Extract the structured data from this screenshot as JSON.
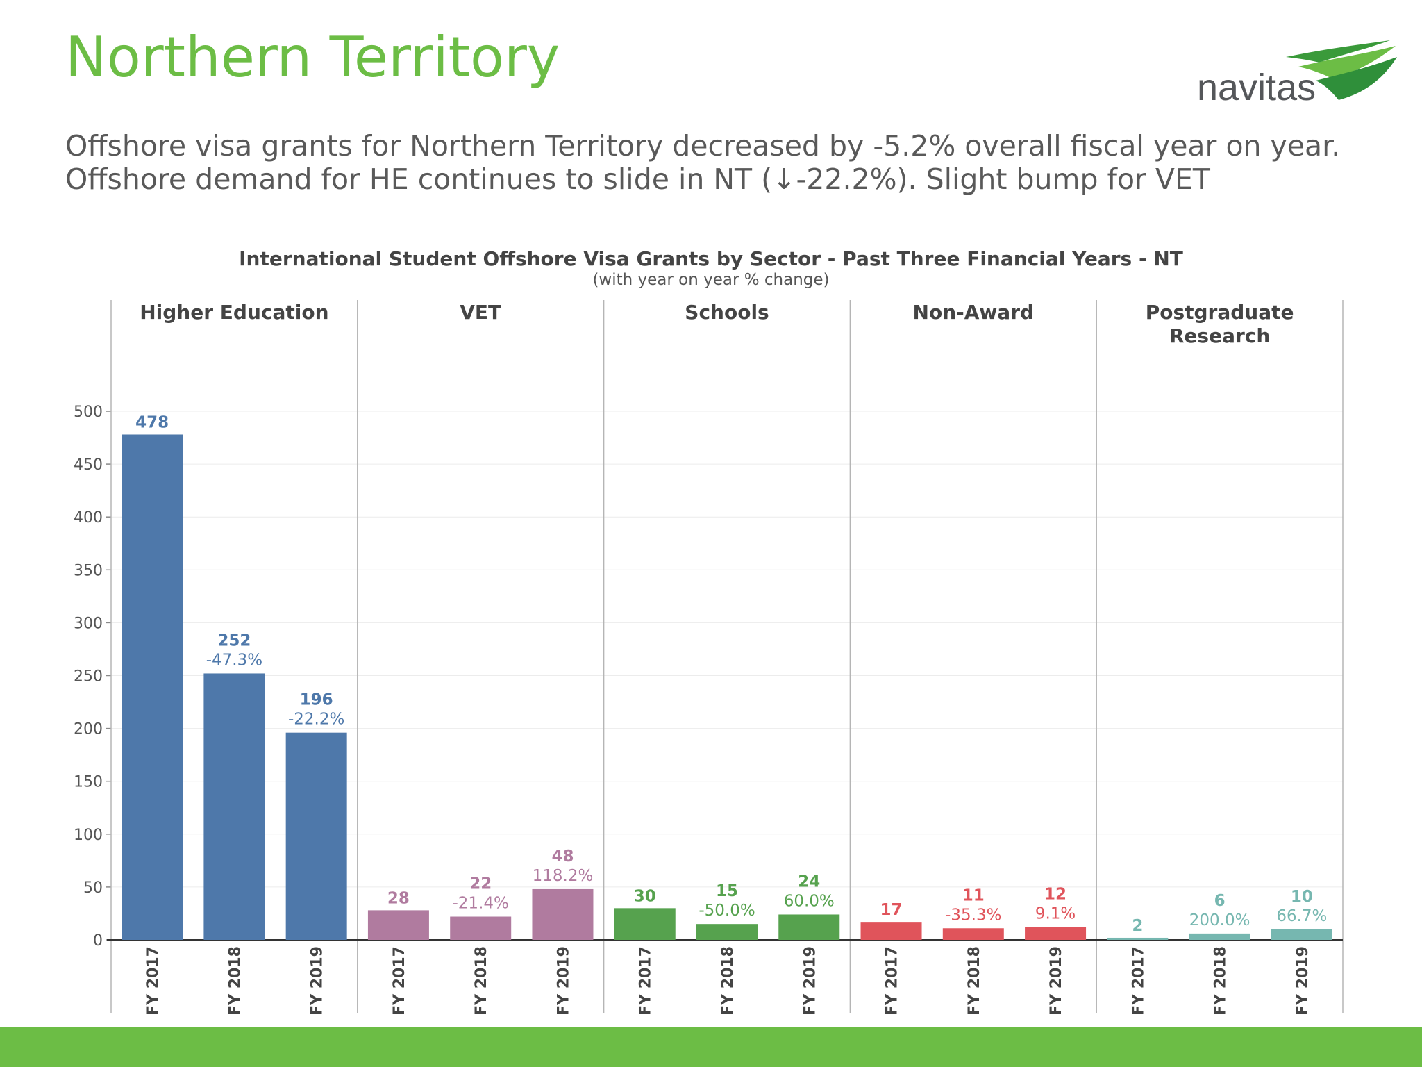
{
  "slide": {
    "title": "Northern Territory",
    "subtitle_lines": [
      "Offshore visa grants for Northern Territory decreased by -5.2% overall fiscal year on year.",
      "Offshore demand for HE continues to slide in NT (↓-22.2%). Slight bump for VET"
    ],
    "logo_text": "navitas"
  },
  "colors": {
    "title_green": "#6cbd45",
    "footer_green": "#6cbd45"
  },
  "chart_data": {
    "type": "bar",
    "title": "International Student Offshore Visa Grants by Sector - Past Three Financial Years - NT",
    "subtitle": "(with year on year % change)",
    "categories": [
      "FY 2017",
      "FY 2018",
      "FY 2019"
    ],
    "ylim": [
      0,
      500
    ],
    "yticks": [
      0,
      50,
      100,
      150,
      200,
      250,
      300,
      350,
      400,
      450,
      500
    ],
    "grid": true,
    "panels": [
      {
        "name": "Higher Education",
        "name_lines": [
          "Higher Education"
        ],
        "color": "#4e78aa",
        "values": [
          478,
          252,
          196
        ],
        "changes": [
          "",
          "-47.3%",
          "-22.2%"
        ]
      },
      {
        "name": "VET",
        "name_lines": [
          "VET"
        ],
        "color": "#b07b9f",
        "values": [
          28,
          22,
          48
        ],
        "changes": [
          "",
          "-21.4%",
          "118.2%"
        ]
      },
      {
        "name": "Schools",
        "name_lines": [
          "Schools"
        ],
        "color": "#56a24e",
        "values": [
          30,
          15,
          24
        ],
        "changes": [
          "",
          "-50.0%",
          "60.0%"
        ]
      },
      {
        "name": "Non-Award",
        "name_lines": [
          "Non-Award"
        ],
        "color": "#e0545b",
        "values": [
          17,
          11,
          12
        ],
        "changes": [
          "",
          "-35.3%",
          "9.1%"
        ]
      },
      {
        "name": "Postgraduate Research",
        "name_lines": [
          "Postgraduate",
          "Research"
        ],
        "color": "#76b7b0",
        "values": [
          2,
          6,
          10
        ],
        "changes": [
          "",
          "200.0%",
          "66.7%"
        ]
      }
    ]
  }
}
